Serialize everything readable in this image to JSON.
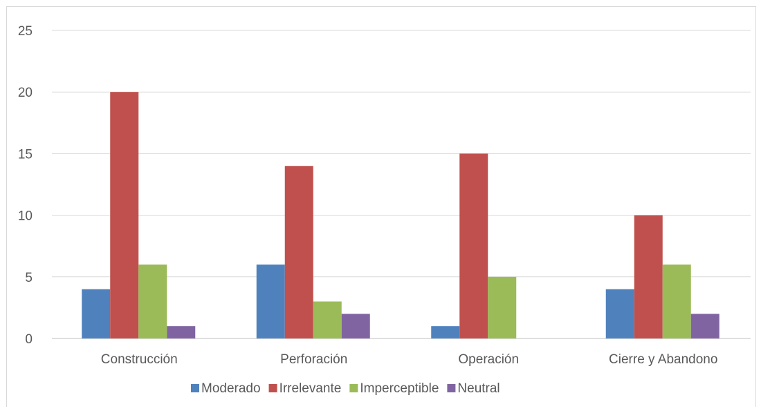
{
  "chart_data": {
    "type": "bar",
    "categories": [
      "Construcción",
      "Perforación",
      "Operación",
      "Cierre y Abandono"
    ],
    "series": [
      {
        "name": "Moderado",
        "values": [
          4,
          6,
          1,
          4
        ],
        "color": "#4f81bd"
      },
      {
        "name": "Irrelevante",
        "values": [
          20,
          14,
          15,
          10
        ],
        "color": "#c0504d"
      },
      {
        "name": "Imperceptible",
        "values": [
          6,
          3,
          5,
          6
        ],
        "color": "#9bbb59"
      },
      {
        "name": "Neutral",
        "values": [
          1,
          2,
          0,
          2
        ],
        "color": "#8064a2"
      }
    ],
    "yticks": [
      "0",
      "5",
      "10",
      "15",
      "20",
      "25"
    ],
    "ylim": [
      0,
      25
    ],
    "grid": true,
    "legend_position": "bottom"
  }
}
